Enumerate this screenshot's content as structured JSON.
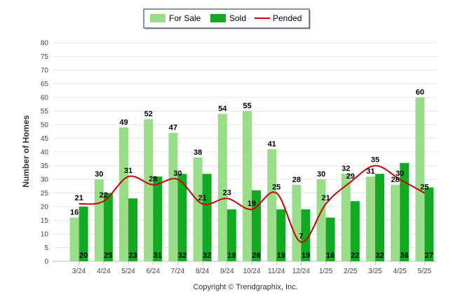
{
  "chart_data": {
    "type": "bar",
    "categories": [
      "3/24",
      "4/24",
      "5/24",
      "6/24",
      "7/24",
      "8/24",
      "9/24",
      "10/24",
      "11/24",
      "12/24",
      "1/25",
      "2/25",
      "3/25",
      "4/25",
      "5/25"
    ],
    "series": [
      {
        "name": "For Sale",
        "kind": "bar",
        "color": "#99dd88",
        "values": [
          16,
          30,
          49,
          52,
          47,
          38,
          54,
          55,
          41,
          28,
          30,
          32,
          31,
          28,
          60
        ]
      },
      {
        "name": "Sold",
        "kind": "bar",
        "color": "#11aa22",
        "values": [
          20,
          25,
          23,
          31,
          32,
          32,
          19,
          26,
          19,
          19,
          16,
          22,
          32,
          36,
          27
        ]
      },
      {
        "name": "Pended",
        "kind": "line",
        "color": "#cc0000",
        "values": [
          21,
          22,
          31,
          28,
          30,
          21,
          23,
          19,
          25,
          7,
          21,
          29,
          35,
          30,
          25
        ]
      }
    ],
    "ylabel": "Number of Homes",
    "ylim": [
      0,
      80
    ],
    "yticks": [
      0,
      5,
      10,
      15,
      20,
      25,
      30,
      35,
      40,
      45,
      50,
      55,
      60,
      65,
      70,
      75,
      80
    ],
    "grid": true,
    "legend_position": "top-center",
    "copyright": "Copyright © Trendgraphix, Inc."
  }
}
